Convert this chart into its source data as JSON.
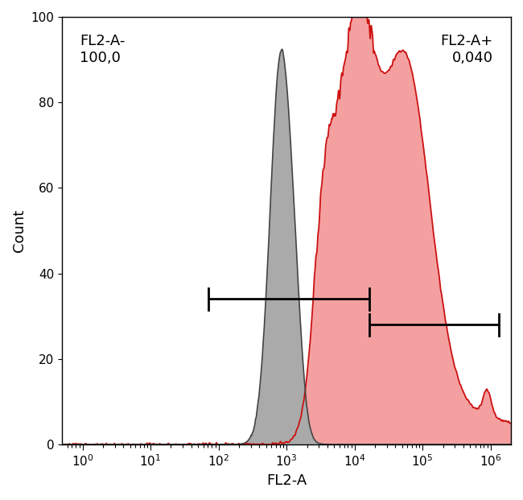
{
  "title": "",
  "xlabel": "FL2-A",
  "ylabel": "Count",
  "xlim_log": [
    -0.3,
    6.3
  ],
  "ylim": [
    0,
    100
  ],
  "yticks": [
    0,
    20,
    40,
    60,
    80,
    100
  ],
  "background_color": "#ffffff",
  "gray_label": "FL2-A-\n100,0",
  "red_label": "FL2-A+\n0,040",
  "gray_color": "#aaaaaa",
  "gray_edge_color": "#444444",
  "red_fill_color": "#f4a0a0",
  "red_edge_color": "#cc1111",
  "gate_y1": 34,
  "gate_y2": 28,
  "gate1_x1_log": 1.85,
  "gate1_x2_log": 4.22,
  "gate2_x1_log": 4.22,
  "gate2_x2_log": 6.12,
  "gray_peak_log": 2.92,
  "gray_peak_height": 91,
  "gray_sigma_log": 0.16,
  "font_size_labels": 13,
  "font_size_annot": 13,
  "tick_font_size": 11
}
